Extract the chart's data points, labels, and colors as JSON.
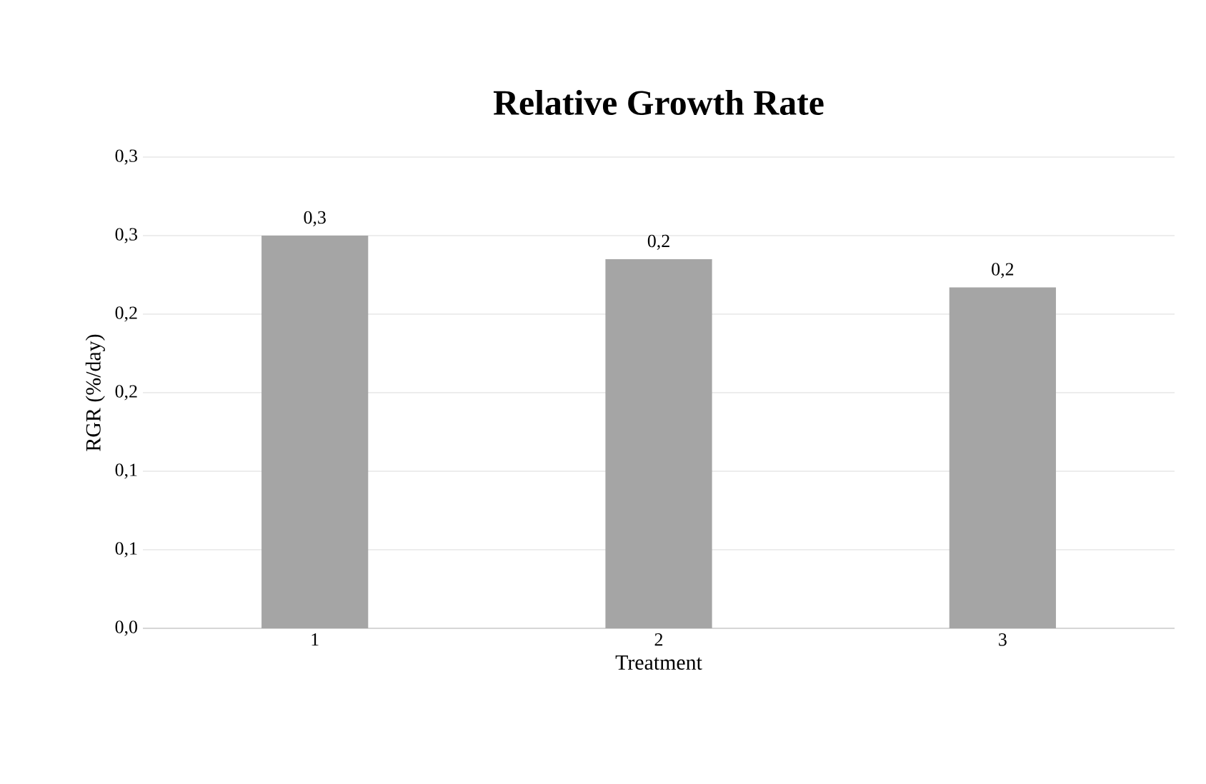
{
  "chart_data": {
    "type": "bar",
    "title": "Relative Growth Rate",
    "xlabel": "Treatment",
    "ylabel": "RGR (%/day)",
    "categories": [
      "1",
      "2",
      "3"
    ],
    "values": [
      0.25,
      0.235,
      0.217
    ],
    "color": "#a5a5a5",
    "value_labels": [
      "0,3",
      "0,2",
      "0,2"
    ],
    "ylim": [
      0,
      0.3
    ],
    "yticks": [
      {
        "value": 0,
        "label": "0,0"
      },
      {
        "value": 0.05,
        "label": "0,1"
      },
      {
        "value": 0.1,
        "label": "0,1"
      },
      {
        "value": 0.15,
        "label": "0,2"
      },
      {
        "value": 0.2,
        "label": "0,2"
      },
      {
        "value": 0.25,
        "label": "0,3"
      },
      {
        "value": 0.3,
        "label": "0,3"
      }
    ],
    "grid": "y"
  }
}
